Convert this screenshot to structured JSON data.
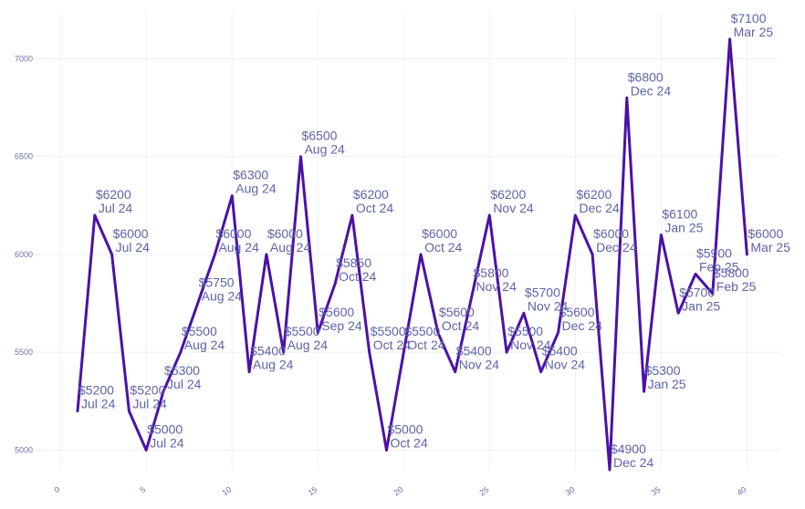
{
  "chart_data": {
    "type": "line",
    "title": "",
    "xlabel": "",
    "ylabel": "",
    "xlim": [
      -1.5,
      42
    ],
    "ylim": [
      4900,
      7230
    ],
    "x_ticks": [
      0,
      5,
      10,
      15,
      20,
      25,
      30,
      35,
      40
    ],
    "y_ticks": [
      5000,
      5500,
      6000,
      6500,
      7000
    ],
    "grid": true,
    "legend": "none",
    "colors": {
      "line": "#4b11a8",
      "labels": "#5e64a8",
      "ticks": "#6a6fa8",
      "grid": "#eef0f7"
    },
    "series": [
      {
        "x": [
          1,
          2,
          3,
          4,
          5,
          6,
          7,
          8,
          9,
          10,
          11,
          12,
          13,
          14,
          15,
          16,
          17,
          18,
          19,
          20,
          21,
          22,
          23,
          24,
          25,
          26,
          27,
          28,
          29,
          30,
          31,
          32,
          33,
          34,
          35,
          36,
          37,
          38,
          39,
          40
        ],
        "values": [
          5200,
          6200,
          6000,
          5200,
          5000,
          5300,
          5500,
          5750,
          6000,
          6300,
          5400,
          6000,
          5500,
          6500,
          5600,
          5850,
          6200,
          5500,
          5000,
          5500,
          6000,
          5600,
          5400,
          5800,
          6200,
          5500,
          5700,
          5400,
          5600,
          6200,
          6000,
          4900,
          6800,
          5300,
          6100,
          5700,
          5900,
          5800,
          7100,
          6000
        ],
        "labels": [
          [
            "$5200",
            "Jul 24"
          ],
          [
            "$6200",
            "Jul 24"
          ],
          [
            "$6000",
            "Jul 24"
          ],
          [
            "$5200",
            "Jul 24"
          ],
          [
            "$5000",
            "Jul 24"
          ],
          [
            "$5300",
            "Jul 24"
          ],
          [
            "$5500",
            "Aug 24"
          ],
          [
            "$5750",
            "Aug 24"
          ],
          [
            "$6000",
            "Aug 24"
          ],
          [
            "$6300",
            "Aug 24"
          ],
          [
            "$5400",
            "Aug 24"
          ],
          [
            "$6000",
            "Aug 24"
          ],
          [
            "$5500",
            "Aug 24"
          ],
          [
            "$6500",
            "Aug 24"
          ],
          [
            "$5600",
            "Sep 24"
          ],
          [
            "$5850",
            "Oct 24"
          ],
          [
            "$6200",
            "Oct 24"
          ],
          [
            "$5500",
            "Oct 24"
          ],
          [
            "$5000",
            "Oct 24"
          ],
          [
            "$5500",
            "Oct 24"
          ],
          [
            "$6000",
            "Oct 24"
          ],
          [
            "$5600",
            "Oct 24"
          ],
          [
            "$5400",
            "Nov 24"
          ],
          [
            "$5800",
            "Nov 24"
          ],
          [
            "$6200",
            "Nov 24"
          ],
          [
            "$5500",
            "Nov 24"
          ],
          [
            "$5700",
            "Nov 24"
          ],
          [
            "$5400",
            "Nov 24"
          ],
          [
            "$5600",
            "Dec 24"
          ],
          [
            "$6200",
            "Dec 24"
          ],
          [
            "$6000",
            "Dec 24"
          ],
          [
            "$4900",
            "Dec 24"
          ],
          [
            "$6800",
            "Dec 24"
          ],
          [
            "$5300",
            "Jan 25"
          ],
          [
            "$6100",
            "Jan 25"
          ],
          [
            "$5700",
            "Jan 25"
          ],
          [
            "$5900",
            "Feb 25"
          ],
          [
            "$5800",
            "Feb 25"
          ],
          [
            "$7100",
            "Mar 25"
          ],
          [
            "$6000",
            "Mar 25"
          ]
        ]
      }
    ]
  }
}
